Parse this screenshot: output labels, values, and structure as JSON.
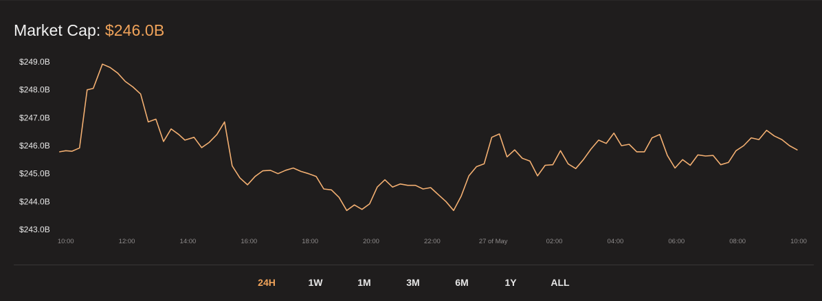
{
  "header": {
    "title_label": "Market Cap:",
    "title_value": "$246.0B"
  },
  "colors": {
    "accent": "#f0a35a",
    "line": "#f4b072",
    "background": "#1f1d1d",
    "text": "#ffffff"
  },
  "range_tabs": {
    "active": "24H",
    "items": [
      "24H",
      "1W",
      "1M",
      "3M",
      "6M",
      "1Y",
      "ALL"
    ]
  },
  "chart_data": {
    "type": "line",
    "title": "Market Cap: $246.0B",
    "xlabel": "",
    "ylabel": "",
    "grid": false,
    "legend": "none",
    "ylim": [
      243.0,
      249.0
    ],
    "xlim": [
      9.5,
      34.0
    ],
    "y_ticks": [
      {
        "value": 249.0,
        "label": "$249.0B"
      },
      {
        "value": 248.0,
        "label": "$248.0B"
      },
      {
        "value": 247.0,
        "label": "$247.0B"
      },
      {
        "value": 246.0,
        "label": "$246.0B"
      },
      {
        "value": 245.0,
        "label": "$245.0B"
      },
      {
        "value": 244.0,
        "label": "$244.0B"
      },
      {
        "value": 243.0,
        "label": "$243.0B"
      }
    ],
    "x_ticks": [
      {
        "value": 10,
        "label": "10:00"
      },
      {
        "value": 12,
        "label": "12:00"
      },
      {
        "value": 14,
        "label": "14:00"
      },
      {
        "value": 16,
        "label": "16:00"
      },
      {
        "value": 18,
        "label": "18:00"
      },
      {
        "value": 20,
        "label": "20:00"
      },
      {
        "value": 22,
        "label": "22:00"
      },
      {
        "value": 24,
        "label": "27 of May"
      },
      {
        "value": 26,
        "label": "02:00"
      },
      {
        "value": 28,
        "label": "04:00"
      },
      {
        "value": 30,
        "label": "06:00"
      },
      {
        "value": 32,
        "label": "08:00"
      },
      {
        "value": 34,
        "label": "10:00"
      }
    ],
    "series": [
      {
        "name": "",
        "x": [
          9.8,
          10.0,
          10.2,
          10.45,
          10.7,
          10.9,
          11.2,
          11.45,
          11.7,
          11.95,
          12.2,
          12.45,
          12.7,
          12.95,
          13.2,
          13.45,
          13.7,
          13.9,
          14.2,
          14.45,
          14.7,
          14.95,
          15.2,
          15.45,
          15.7,
          15.95,
          16.2,
          16.45,
          16.7,
          16.95,
          17.2,
          17.45,
          17.7,
          17.95,
          18.2,
          18.45,
          18.7,
          18.95,
          19.2,
          19.45,
          19.7,
          19.95,
          20.2,
          20.45,
          20.7,
          20.95,
          21.2,
          21.45,
          21.7,
          21.95,
          22.2,
          22.45,
          22.7,
          22.95,
          23.2,
          23.45,
          23.7,
          23.95,
          24.2,
          24.45,
          24.7,
          24.95,
          25.2,
          25.45,
          25.7,
          25.95,
          26.2,
          26.45,
          26.7,
          26.95,
          27.2,
          27.45,
          27.7,
          27.95,
          28.2,
          28.45,
          28.7,
          28.95,
          29.2,
          29.45,
          29.7,
          29.95,
          30.2,
          30.45,
          30.7,
          30.95,
          31.2,
          31.45,
          31.7,
          31.95,
          32.2,
          32.45,
          32.7,
          32.95,
          33.2,
          33.45,
          33.7,
          33.95
        ],
        "y": [
          245.78,
          245.82,
          245.8,
          245.92,
          248.0,
          248.05,
          248.92,
          248.8,
          248.6,
          248.3,
          248.1,
          247.85,
          246.85,
          246.95,
          246.15,
          246.6,
          246.4,
          246.2,
          246.3,
          245.93,
          246.12,
          246.4,
          246.85,
          245.28,
          244.85,
          244.6,
          244.9,
          245.1,
          245.12,
          245.0,
          245.12,
          245.2,
          245.08,
          245.0,
          244.9,
          244.45,
          244.42,
          244.15,
          243.68,
          243.88,
          243.72,
          243.92,
          244.52,
          244.78,
          244.52,
          244.63,
          244.58,
          244.58,
          244.45,
          244.5,
          244.25,
          244.0,
          243.68,
          244.2,
          244.92,
          245.25,
          245.35,
          246.3,
          246.42,
          245.6,
          245.85,
          245.55,
          245.45,
          244.92,
          245.3,
          245.32,
          245.82,
          245.35,
          245.18,
          245.5,
          245.88,
          246.2,
          246.08,
          246.45,
          246.0,
          246.05,
          245.78,
          245.78,
          246.28,
          246.4,
          245.65,
          245.2,
          245.5,
          245.3,
          245.67,
          245.63,
          245.65,
          245.32,
          245.4,
          245.82,
          246.0,
          246.28,
          246.22,
          246.55,
          246.35,
          246.22,
          246.0,
          245.85
        ]
      }
    ]
  }
}
